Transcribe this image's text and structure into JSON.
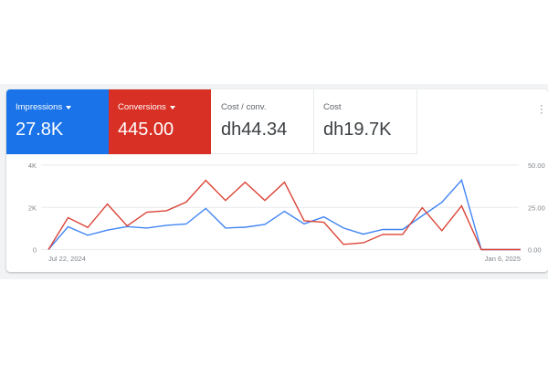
{
  "metrics": [
    {
      "label": "Impressions",
      "value": "27.8K",
      "color": "#1a73e8",
      "dropdown": true
    },
    {
      "label": "Conversions",
      "value": "445.00",
      "color": "#d93025",
      "dropdown": true
    },
    {
      "label": "Cost / conv.",
      "value": "dh44.34"
    },
    {
      "label": "Cost",
      "value": "dh19.7K"
    }
  ],
  "more_icon": "more-vertical-icon",
  "chart_data": {
    "type": "line",
    "x_labels": [
      "Jul 22, 2024",
      "Jan 6, 2025"
    ],
    "left_axis": {
      "ticks": [
        "0",
        "2K",
        "4K"
      ],
      "range": [
        0,
        4000
      ]
    },
    "right_axis": {
      "ticks": [
        "0.00",
        "25.00",
        "50.00"
      ],
      "range": [
        0,
        50
      ]
    },
    "grid": true,
    "series": [
      {
        "name": "Impressions",
        "axis": "left",
        "color": "#4285f4",
        "values": [
          0,
          1080,
          680,
          920,
          1090,
          1020,
          1150,
          1210,
          1950,
          1020,
          1060,
          1190,
          1810,
          1220,
          1550,
          1020,
          730,
          950,
          950,
          1600,
          2240,
          3290,
          0,
          0,
          0
        ]
      },
      {
        "name": "Conversions",
        "axis": "right",
        "color": "#db4437",
        "values": [
          0,
          18.9,
          13.1,
          27.0,
          14.0,
          22.1,
          23.0,
          28.1,
          41.0,
          29.1,
          39.9,
          29.1,
          39.9,
          17.1,
          16.2,
          3.1,
          4.0,
          9.0,
          9.0,
          24.8,
          11.2,
          25.9,
          0,
          0,
          0
        ]
      }
    ]
  }
}
